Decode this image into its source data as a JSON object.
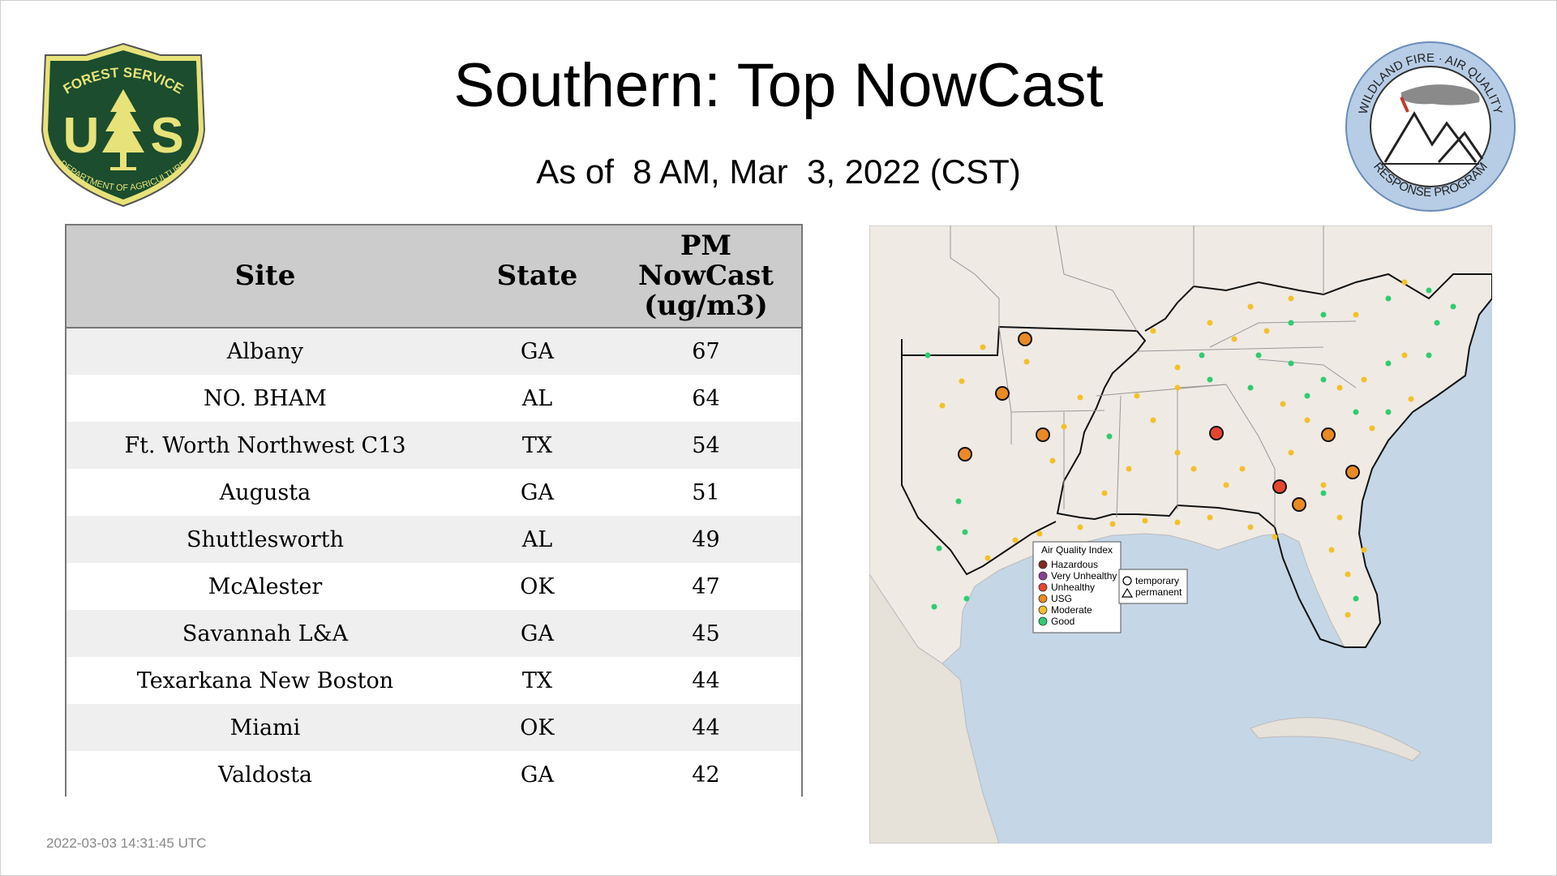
{
  "header": {
    "title": "Southern: Top NowCast",
    "subtitle": "As of  8 AM, Mar  3, 2022 (CST)"
  },
  "logos": {
    "left": {
      "icon": "forest-service-shield-icon",
      "text_top": "FOREST SERVICE",
      "letters": "U S",
      "text_bottom": "DEPARTMENT OF AGRICULTURE"
    },
    "right": {
      "icon": "wildland-fire-air-quality-seal-icon",
      "text_top": "WILDLAND FIRE · AIR QUALITY",
      "text_bottom": "RESPONSE PROGRAM"
    }
  },
  "table": {
    "columns": [
      "Site",
      "State",
      "PM",
      "NowCast",
      "(ug/m3)"
    ],
    "rows": [
      {
        "site": "Albany",
        "state": "GA",
        "value": "67"
      },
      {
        "site": "NO. BHAM",
        "state": "AL",
        "value": "64"
      },
      {
        "site": "Ft. Worth Northwest C13",
        "state": "TX",
        "value": "54"
      },
      {
        "site": "Augusta",
        "state": "GA",
        "value": "51"
      },
      {
        "site": "Shuttlesworth",
        "state": "AL",
        "value": "49"
      },
      {
        "site": "McAlester",
        "state": "OK",
        "value": "47"
      },
      {
        "site": "Savannah L&A",
        "state": "GA",
        "value": "45"
      },
      {
        "site": "Texarkana New Boston",
        "state": "TX",
        "value": "44"
      },
      {
        "site": "Miami",
        "state": "OK",
        "value": "44"
      },
      {
        "site": "Valdosta",
        "state": "GA",
        "value": "42"
      }
    ]
  },
  "map": {
    "legend": {
      "title": "Air Quality Index",
      "items": [
        {
          "label": "Hazardous",
          "color": "#7e2c1f"
        },
        {
          "label": "Very Unhealthy",
          "color": "#8f3f97"
        },
        {
          "label": "Unhealthy",
          "color": "#e6452f"
        },
        {
          "label": "USG",
          "color": "#e98a25"
        },
        {
          "label": "Moderate",
          "color": "#f2c12a"
        },
        {
          "label": "Good",
          "color": "#2ecc71"
        }
      ]
    },
    "shape_legend": {
      "temporary": "temporary",
      "permanent": "permanent"
    }
  },
  "footer": {
    "timestamp": "2022-03-03 14:31:45 UTC"
  }
}
